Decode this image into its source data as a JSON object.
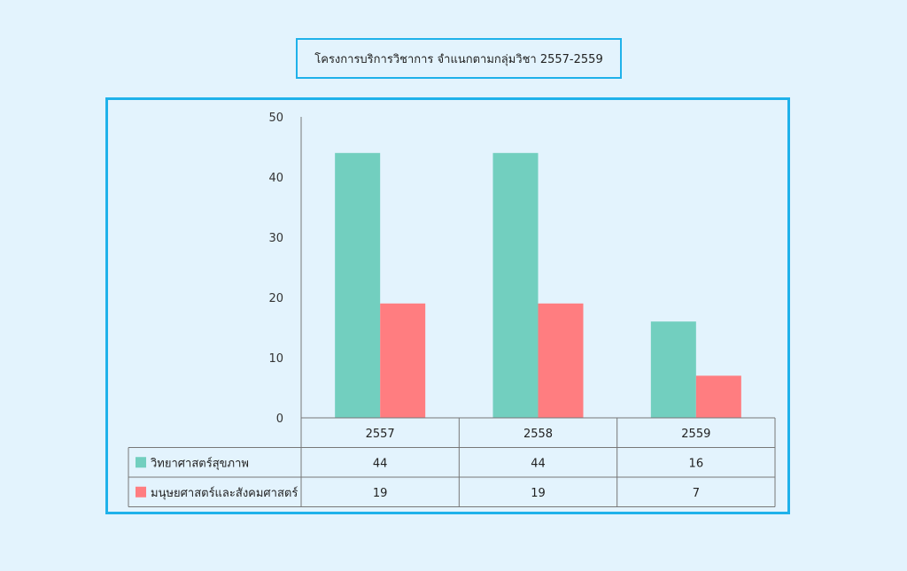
{
  "chart_data": {
    "type": "bar",
    "title": "โครงการบริการวิชาการ จำแนกตามกลุ่มวิชา 2557-2559",
    "categories": [
      "2557",
      "2558",
      "2559"
    ],
    "series": [
      {
        "name": "วิทยาศาสตร์สุขภาพ",
        "values": [
          44,
          44,
          16
        ],
        "color": "#72cfbf"
      },
      {
        "name": "มนุษยศาสตร์และสังคมศาสตร์",
        "values": [
          19,
          19,
          7
        ],
        "color": "#ff7d80"
      }
    ],
    "yticks": [
      0,
      10,
      20,
      30,
      40,
      50
    ],
    "ylim": [
      0,
      50
    ],
    "legend": "data-table-bottom",
    "grid": false
  }
}
